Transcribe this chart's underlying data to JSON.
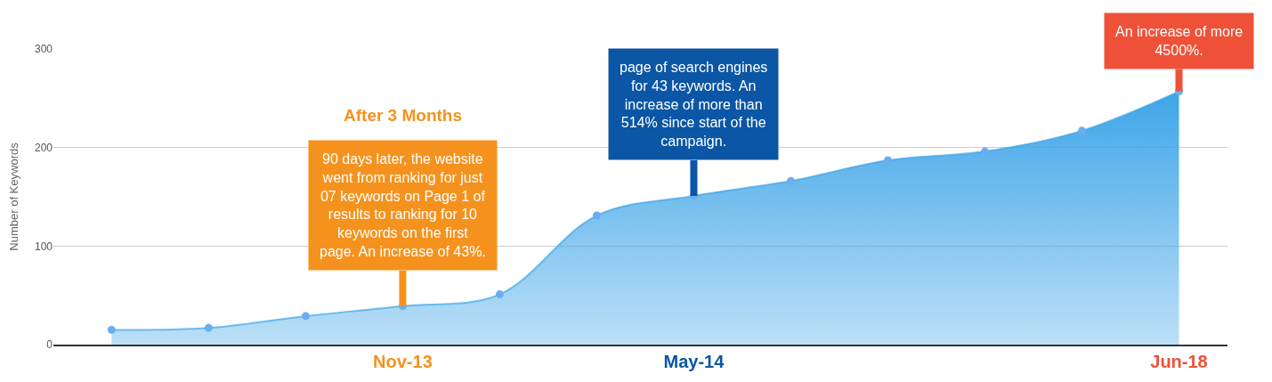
{
  "chart_data": {
    "type": "area",
    "ylabel": "Number of Keywords",
    "categories": [
      null,
      null,
      null,
      "Nov-13",
      null,
      null,
      "May-14",
      null,
      null,
      null,
      null,
      "Jun-18"
    ],
    "series": [
      {
        "color": "#3ea5e8",
        "values": [
          15,
          17,
          29,
          39,
          51,
          131,
          151,
          166,
          187,
          196,
          217,
          257
        ]
      }
    ],
    "ylim": [
      0,
      300
    ],
    "yticks": [
      0,
      100,
      200,
      300
    ],
    "grid": "y",
    "marker": "circle",
    "annotations": [
      "After 3 Months",
      {
        "text": "90 days later, the website\nwent from ranking for just\n07 keywords on Page 1 of\nresults to ranking for 10\nkeywords on the first\npage. An increase of 43%.",
        "x": "Nov-13",
        "y": 39
      },
      {
        "text": "page of search engines\nfor 43 keywords. An\nincrease of more than\n514% since start of the\ncampaign.",
        "x": "May-14",
        "y": 151
      },
      {
        "text": "An increase of more\n4500%.",
        "x": "Jun-18",
        "y": 257
      }
    ]
  }
}
